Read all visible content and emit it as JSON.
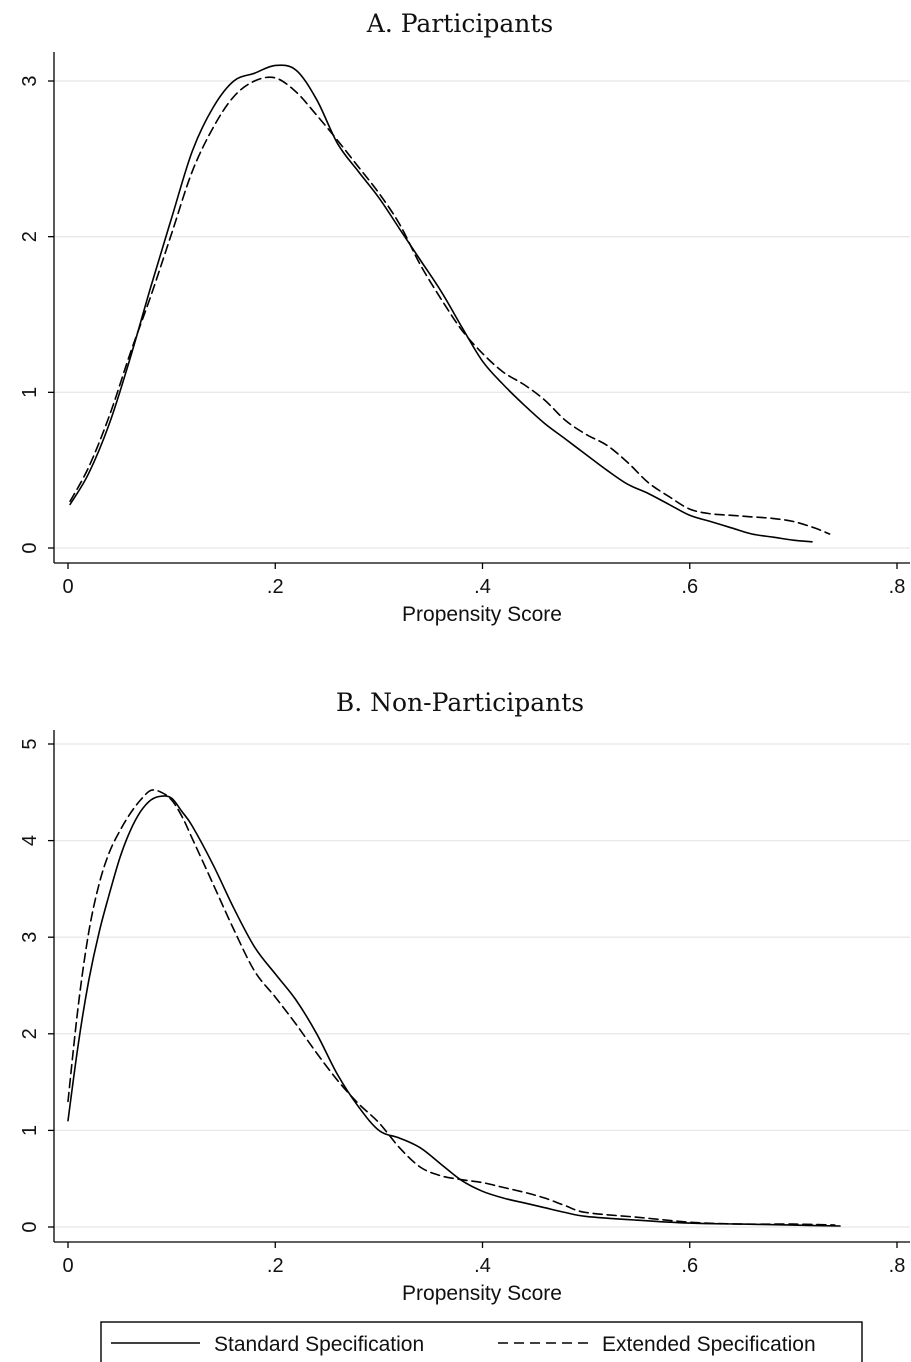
{
  "chart_data": [
    {
      "type": "line",
      "title": "A. Participants",
      "xlabel": "Propensity Score",
      "ylabel": "",
      "xlim": [
        0,
        0.8
      ],
      "ylim": [
        0,
        3
      ],
      "x_ticks": [
        0,
        0.2,
        0.4,
        0.6,
        0.8
      ],
      "x_tick_labels": [
        "0",
        ".2",
        ".4",
        ".6",
        ".8"
      ],
      "y_ticks": [
        0,
        1,
        2,
        3
      ],
      "y_tick_labels": [
        "0",
        "1",
        "2",
        "3"
      ],
      "grid": true,
      "series": [
        {
          "name": "Standard Specification",
          "style": "solid",
          "x": [
            0.002,
            0.02,
            0.04,
            0.06,
            0.08,
            0.1,
            0.12,
            0.14,
            0.16,
            0.18,
            0.2,
            0.22,
            0.24,
            0.26,
            0.28,
            0.3,
            0.32,
            0.34,
            0.36,
            0.38,
            0.4,
            0.42,
            0.44,
            0.46,
            0.48,
            0.5,
            0.52,
            0.54,
            0.56,
            0.58,
            0.6,
            0.62,
            0.64,
            0.66,
            0.68,
            0.7,
            0.718
          ],
          "y": [
            0.28,
            0.48,
            0.8,
            1.22,
            1.68,
            2.12,
            2.55,
            2.83,
            3.0,
            3.05,
            3.1,
            3.07,
            2.88,
            2.6,
            2.42,
            2.25,
            2.05,
            1.85,
            1.65,
            1.42,
            1.2,
            1.05,
            0.92,
            0.8,
            0.7,
            0.6,
            0.5,
            0.41,
            0.35,
            0.28,
            0.21,
            0.17,
            0.13,
            0.09,
            0.07,
            0.05,
            0.04
          ]
        },
        {
          "name": "Extended Specification",
          "style": "dashed",
          "x": [
            0.002,
            0.02,
            0.04,
            0.06,
            0.08,
            0.1,
            0.12,
            0.14,
            0.16,
            0.18,
            0.2,
            0.22,
            0.24,
            0.26,
            0.28,
            0.3,
            0.32,
            0.34,
            0.36,
            0.38,
            0.4,
            0.42,
            0.44,
            0.46,
            0.48,
            0.5,
            0.52,
            0.54,
            0.56,
            0.58,
            0.6,
            0.62,
            0.64,
            0.66,
            0.68,
            0.7,
            0.72,
            0.735
          ],
          "y": [
            0.3,
            0.52,
            0.85,
            1.25,
            1.62,
            2.02,
            2.42,
            2.7,
            2.9,
            3.0,
            3.02,
            2.93,
            2.78,
            2.62,
            2.45,
            2.28,
            2.08,
            1.82,
            1.6,
            1.4,
            1.25,
            1.13,
            1.05,
            0.95,
            0.82,
            0.73,
            0.66,
            0.55,
            0.42,
            0.33,
            0.25,
            0.22,
            0.21,
            0.2,
            0.19,
            0.17,
            0.13,
            0.09
          ]
        }
      ]
    },
    {
      "type": "line",
      "title": "B. Non-Participants",
      "xlabel": "Propensity Score",
      "ylabel": "",
      "xlim": [
        0,
        0.8
      ],
      "ylim": [
        0,
        5
      ],
      "x_ticks": [
        0,
        0.2,
        0.4,
        0.6,
        0.8
      ],
      "x_tick_labels": [
        "0",
        ".2",
        ".4",
        ".6",
        ".8"
      ],
      "y_ticks": [
        0,
        1,
        2,
        3,
        4,
        5
      ],
      "y_tick_labels": [
        "0",
        "1",
        "2",
        "3",
        "4",
        "5"
      ],
      "grid": true,
      "series": [
        {
          "name": "Standard Specification",
          "style": "solid",
          "x": [
            0.0,
            0.01,
            0.02,
            0.03,
            0.04,
            0.05,
            0.06,
            0.07,
            0.08,
            0.09,
            0.1,
            0.11,
            0.12,
            0.14,
            0.16,
            0.18,
            0.2,
            0.22,
            0.24,
            0.26,
            0.28,
            0.3,
            0.32,
            0.34,
            0.36,
            0.38,
            0.4,
            0.42,
            0.44,
            0.46,
            0.48,
            0.5,
            0.55,
            0.6,
            0.65,
            0.7,
            0.745
          ],
          "y": [
            1.1,
            1.9,
            2.55,
            3.05,
            3.45,
            3.82,
            4.1,
            4.3,
            4.42,
            4.46,
            4.44,
            4.3,
            4.15,
            3.75,
            3.3,
            2.9,
            2.62,
            2.35,
            2.0,
            1.58,
            1.25,
            1.0,
            0.92,
            0.82,
            0.65,
            0.48,
            0.37,
            0.3,
            0.25,
            0.2,
            0.15,
            0.11,
            0.07,
            0.04,
            0.03,
            0.02,
            0.01
          ]
        },
        {
          "name": "Extended Specification",
          "style": "dashed",
          "x": [
            0.0,
            0.01,
            0.02,
            0.03,
            0.04,
            0.05,
            0.06,
            0.07,
            0.08,
            0.09,
            0.1,
            0.11,
            0.12,
            0.14,
            0.16,
            0.18,
            0.2,
            0.22,
            0.24,
            0.26,
            0.28,
            0.3,
            0.32,
            0.34,
            0.36,
            0.38,
            0.4,
            0.42,
            0.44,
            0.46,
            0.48,
            0.5,
            0.55,
            0.6,
            0.65,
            0.7,
            0.74
          ],
          "y": [
            1.3,
            2.3,
            3.05,
            3.55,
            3.88,
            4.1,
            4.28,
            4.42,
            4.52,
            4.5,
            4.42,
            4.25,
            4.02,
            3.55,
            3.08,
            2.65,
            2.38,
            2.1,
            1.8,
            1.52,
            1.28,
            1.08,
            0.82,
            0.62,
            0.53,
            0.49,
            0.46,
            0.41,
            0.36,
            0.3,
            0.22,
            0.15,
            0.1,
            0.05,
            0.03,
            0.03,
            0.02
          ]
        }
      ]
    }
  ],
  "legend": {
    "position": "bottom",
    "items": [
      {
        "label": "Standard Specification",
        "style": "solid"
      },
      {
        "label": "Extended Specification",
        "style": "dashed"
      }
    ]
  }
}
